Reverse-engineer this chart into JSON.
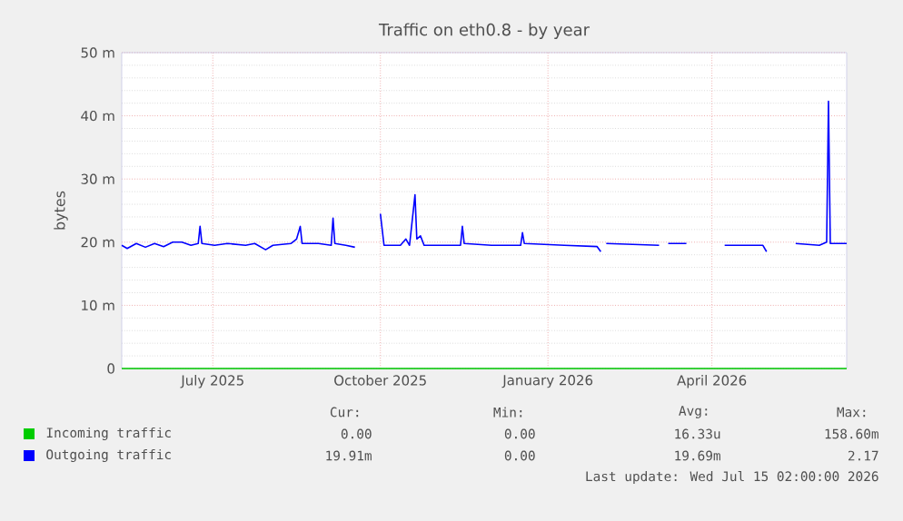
{
  "chart_data": {
    "type": "line",
    "title": "Traffic on eth0.8 - by year",
    "ylabel": "bytes",
    "xlim": [
      "2025-05-12",
      "2026-06-14"
    ],
    "xticks": [
      {
        "value": "2025-07-01",
        "label": "July 2025"
      },
      {
        "value": "2025-10-01",
        "label": "October 2025"
      },
      {
        "value": "2026-01-01",
        "label": "January 2026"
      },
      {
        "value": "2026-04-01",
        "label": "April 2026"
      }
    ],
    "ylim": [
      0,
      50
    ],
    "yticks": [
      0,
      {
        "value": 10,
        "label": "10 m"
      },
      {
        "value": 20,
        "label": "20 m"
      },
      {
        "value": 30,
        "label": "30 m"
      },
      {
        "value": 40,
        "label": "40 m"
      },
      {
        "value": 50,
        "label": "50 m"
      }
    ],
    "grid": true,
    "legend": "bottom",
    "marker": "none",
    "series": [
      {
        "name": "Incoming traffic",
        "color": "#00cc00",
        "x": [
          "2025-05-12",
          "2026-06-14"
        ],
        "values": [
          0,
          0
        ]
      },
      {
        "name": "Outgoing traffic",
        "color": "#0000ff",
        "x": [
          "2025-05-12",
          "2025-05-15",
          "2025-05-20",
          "2025-05-25",
          "2025-05-30",
          "2025-06-04",
          "2025-06-09",
          "2025-06-14",
          "2025-06-19",
          "2025-06-23",
          "2025-06-24",
          "2025-06-25",
          "2025-07-02",
          "2025-07-09",
          "2025-07-19",
          "2025-07-24",
          "2025-07-30",
          "2025-08-03",
          "2025-08-13",
          "2025-08-16",
          "2025-08-18",
          "2025-08-19",
          "2025-08-28",
          "2025-09-04",
          "2025-09-05",
          "2025-09-06",
          "2025-09-12",
          "2025-09-17",
          "2025-09-18",
          "2025-10-01",
          "2025-10-03",
          "2025-10-12",
          "2025-10-15",
          "2025-10-17",
          "2025-10-20",
          "2025-10-21",
          "2025-10-23",
          "2025-10-25",
          "2025-11-06",
          "2025-11-14",
          "2025-11-15",
          "2025-11-16",
          "2025-12-01",
          "2025-12-17",
          "2025-12-18",
          "2025-12-19",
          "2026-01-10",
          "2026-01-28",
          "2026-01-30",
          "2026-01-31",
          "2026-02-02",
          "2026-03-03",
          "2026-03-04",
          "2026-03-08",
          "2026-03-18",
          "2026-03-19",
          "2026-04-08",
          "2026-04-29",
          "2026-05-01",
          "2026-05-02",
          "2026-05-17",
          "2026-05-30",
          "2026-06-03",
          "2026-06-04",
          "2026-06-05",
          "2026-06-14"
        ],
        "values": [
          19.5,
          19.0,
          19.8,
          19.2,
          19.8,
          19.3,
          20,
          20,
          19.5,
          19.8,
          22.5,
          19.8,
          19.5,
          19.8,
          19.5,
          19.8,
          18.8,
          19.5,
          19.8,
          20.5,
          22.5,
          19.8,
          19.8,
          19.5,
          23.8,
          19.8,
          19.5,
          19.2,
          null,
          24.5,
          19.5,
          19.5,
          20.5,
          19.5,
          27.5,
          20.5,
          21.0,
          19.5,
          19.5,
          19.5,
          22.5,
          19.8,
          19.5,
          19.5,
          21.5,
          19.8,
          19.5,
          19.3,
          18.5,
          null,
          19.8,
          19.5,
          null,
          19.8,
          19.8,
          null,
          19.5,
          19.5,
          18.5,
          null,
          19.8,
          19.5,
          20,
          42.3,
          19.8,
          19.8
        ]
      }
    ],
    "annotations": [
      "Cur:",
      "Min:",
      "Avg:",
      "Max:",
      "0.00",
      "0.00",
      "16.33u",
      "158.60m",
      "19.91m",
      "0.00",
      "19.69m",
      "2.17",
      "Last update: Wed Jul 15 02:00:00 2026"
    ]
  }
}
